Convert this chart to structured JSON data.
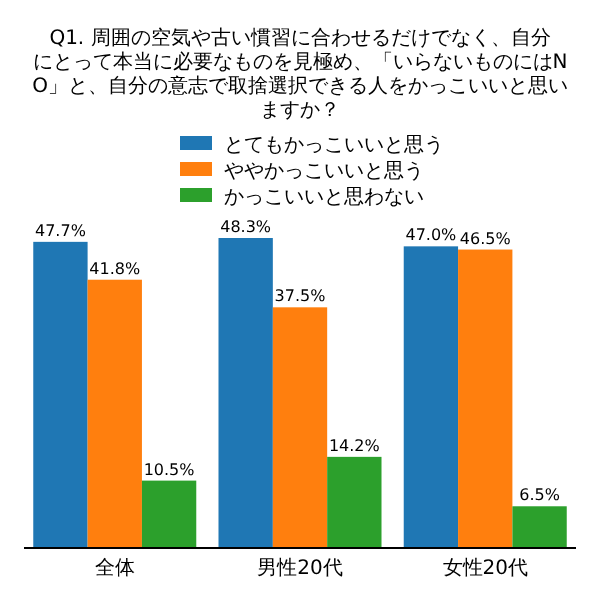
{
  "chart_data": {
    "type": "bar",
    "title": "Q1. 周囲の空気や古い慣習に合わせるだけでなく、自分にとって本当に必要なものを見極め、「いらないものにはNO」と、自分の意志で取捨選択できる人をかっこいいと思いますか？",
    "categories": [
      "全体",
      "男性20代",
      "女性20代"
    ],
    "series": [
      {
        "name": "とてもかっこいいと思う",
        "color": "#1f77b4",
        "values": [
          47.7,
          48.3,
          47.0
        ],
        "value_labels": [
          "47.7%",
          "48.3%",
          "47.0%"
        ]
      },
      {
        "name": "ややかっこいいと思う",
        "color": "#ff7f0e",
        "values": [
          41.8,
          37.5,
          46.5
        ],
        "value_labels": [
          "41.8%",
          "37.5%",
          "46.5%"
        ]
      },
      {
        "name": "かっこいいと思わない",
        "color": "#2ca02c",
        "values": [
          10.5,
          14.2,
          6.5
        ],
        "value_labels": [
          "10.5%",
          "14.2%",
          "6.5%"
        ]
      }
    ],
    "legend": "top"
  }
}
